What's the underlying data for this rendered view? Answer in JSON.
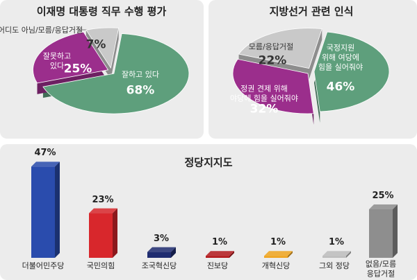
{
  "chart_data": [
    {
      "type": "pie",
      "title": "이재명 대통령 직무 수행 평가",
      "categories": [
        "잘하고 있다",
        "잘못하고\n있다",
        "어디도 아님/모름/응답거절"
      ],
      "values": [
        68,
        25,
        7
      ],
      "value_labels": [
        "68%",
        "25%",
        "7%"
      ],
      "colors": [
        "#5e9f7c",
        "#9b2e8c",
        "#c9c9c9"
      ]
    },
    {
      "type": "pie",
      "title": "지방선거  관련 인식",
      "categories": [
        "국정지원\n위해 여당에\n힘을 실어줘야",
        "정권 견제 위해\n야당에 힘을 실어줘야",
        "모름/응답거절"
      ],
      "values": [
        46,
        32,
        22
      ],
      "value_labels": [
        "46%",
        "32%",
        "22%"
      ],
      "colors": [
        "#5e9f7c",
        "#9b2e8c",
        "#c9c9c9"
      ]
    },
    {
      "type": "bar",
      "title": "정당지지도",
      "categories": [
        "더불어민주당",
        "국민의힘",
        "조국혁신당",
        "진보당",
        "개혁신당",
        "그외 정당",
        "없음/모름\n응답거절"
      ],
      "values": [
        47,
        23,
        3,
        1,
        1,
        1,
        25
      ],
      "value_labels": [
        "47%",
        "23%",
        "3%",
        "1%",
        "1%",
        "1%",
        "25%"
      ],
      "colors": [
        "#2a4cad",
        "#d8272c",
        "#1f2c70",
        "#b3191c",
        "#f0a41f",
        "#bdbdbd",
        "#8e8e8e"
      ]
    }
  ]
}
